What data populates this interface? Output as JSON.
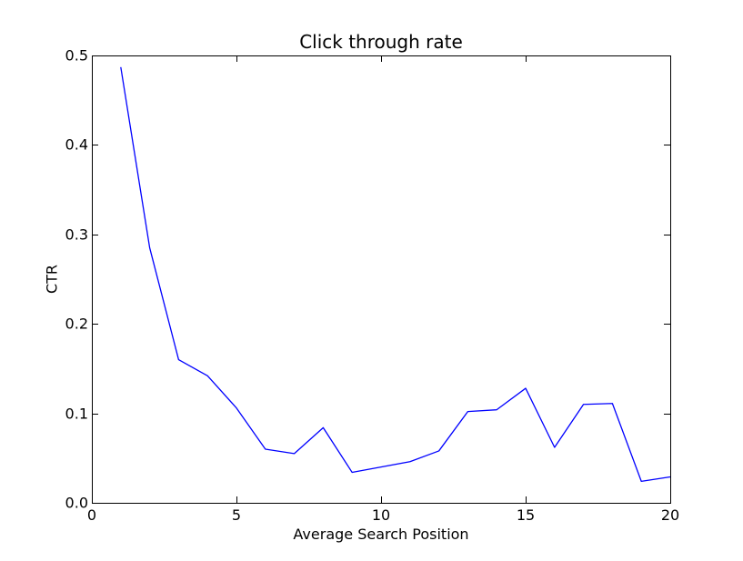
{
  "figure": {
    "background": "#ffffff",
    "text_color": "#000000",
    "axis_color": "#000000"
  },
  "chart_data": {
    "type": "line",
    "title": "Click through rate",
    "xlabel": "Average Search Position",
    "ylabel": "CTR",
    "x": [
      1,
      2,
      3,
      4,
      5,
      6,
      7,
      8,
      9,
      10,
      11,
      12,
      13,
      14,
      15,
      16,
      17,
      18,
      19,
      20
    ],
    "y": [
      0.487,
      0.285,
      0.16,
      0.142,
      0.106,
      0.06,
      0.055,
      0.084,
      0.034,
      0.04,
      0.046,
      0.058,
      0.102,
      0.104,
      0.128,
      0.062,
      0.11,
      0.111,
      0.024,
      0.029
    ],
    "series_name": "CTR",
    "xlim": [
      0,
      20
    ],
    "ylim": [
      0.0,
      0.5
    ],
    "xticks": [
      0,
      5,
      10,
      15,
      20
    ],
    "xtick_labels": [
      "0",
      "5",
      "10",
      "15",
      "20"
    ],
    "yticks": [
      0.0,
      0.1,
      0.2,
      0.3,
      0.4,
      0.5
    ],
    "ytick_labels": [
      "0.0",
      "0.1",
      "0.2",
      "0.3",
      "0.4",
      "0.5"
    ],
    "line_color": "#0000ff",
    "grid": false,
    "legend_position": "none",
    "tick_direction": "in",
    "spines": [
      "top",
      "right",
      "bottom",
      "left"
    ]
  }
}
